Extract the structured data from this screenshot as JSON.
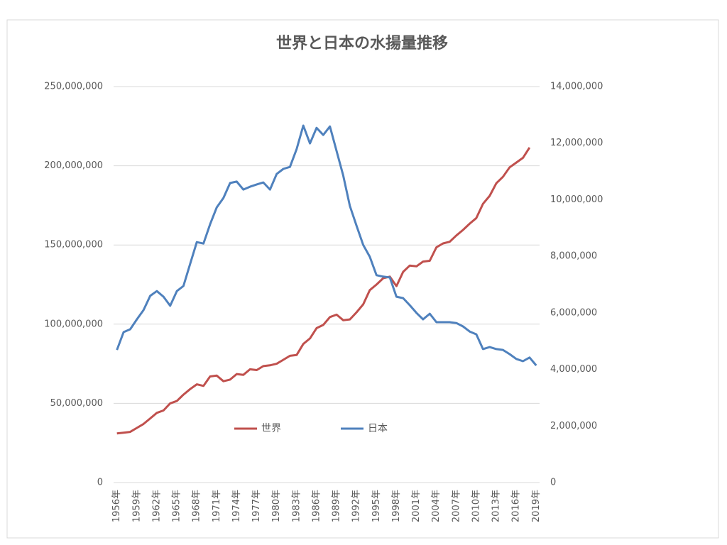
{
  "chart_data": {
    "type": "line",
    "title": "世界と日本の水揚量推移",
    "categories": [
      "1956年",
      null,
      null,
      "1959年",
      null,
      null,
      "1962年",
      null,
      null,
      "1965年",
      null,
      null,
      "1968年",
      null,
      null,
      "1971年",
      null,
      null,
      "1974年",
      null,
      null,
      "1977年",
      null,
      null,
      "1980年",
      null,
      null,
      "1983年",
      null,
      null,
      "1986年",
      null,
      null,
      "1989年",
      null,
      null,
      "1992年",
      null,
      null,
      "1995年",
      null,
      null,
      "1998年",
      null,
      null,
      "2001年",
      null,
      null,
      "2004年",
      null,
      null,
      "2007年",
      null,
      null,
      "2010年",
      null,
      null,
      "2013年",
      null,
      null,
      "2016年",
      null,
      null,
      "2019年"
    ],
    "series": [
      {
        "name": "世界",
        "color": "#c0504d",
        "axis": "y",
        "values": [
          31000000,
          31500000,
          32000000,
          34500000,
          37000000,
          40500000,
          44000000,
          45500000,
          50000000,
          51500000,
          55500000,
          59000000,
          62000000,
          61000000,
          67000000,
          67500000,
          64000000,
          65000000,
          68500000,
          68000000,
          71500000,
          71000000,
          73500000,
          74000000,
          75000000,
          77500000,
          80000000,
          80500000,
          87500000,
          91000000,
          97500000,
          99500000,
          104500000,
          106000000,
          102500000,
          103000000,
          107500000,
          112500000,
          121500000,
          125000000,
          129000000,
          130000000,
          124000000,
          133000000,
          137000000,
          136500000,
          139500000,
          140000000,
          148500000,
          151000000,
          152000000,
          156000000,
          159500000,
          163500000,
          167000000,
          176000000,
          181000000,
          189000000,
          193000000,
          199000000,
          202000000,
          205000000,
          211500000,
          null
        ]
      },
      {
        "name": "日本",
        "color": "#4f81bd",
        "axis": "y2",
        "values": [
          4690000,
          5320000,
          5420000,
          5770000,
          6100000,
          6600000,
          6770000,
          6570000,
          6250000,
          6770000,
          6950000,
          7730000,
          8500000,
          8450000,
          9130000,
          9730000,
          10060000,
          10590000,
          10640000,
          10360000,
          10460000,
          10540000,
          10610000,
          10360000,
          10910000,
          11090000,
          11160000,
          11790000,
          12620000,
          11990000,
          12540000,
          12290000,
          12590000,
          11720000,
          10860000,
          9780000,
          9080000,
          8400000,
          7980000,
          7330000,
          7280000,
          7250000,
          6570000,
          6520000,
          6270000,
          6000000,
          5770000,
          5970000,
          5670000,
          5670000,
          5670000,
          5640000,
          5520000,
          5340000,
          5240000,
          4720000,
          4790000,
          4720000,
          4690000,
          4540000,
          4370000,
          4290000,
          4420000,
          4140000
        ]
      }
    ],
    "ylim": [
      0,
      250000000
    ],
    "yticks": [
      0,
      {
        "value": 50000000,
        "label": "50,000,000"
      },
      {
        "value": 100000000,
        "label": "100,000,000"
      },
      {
        "value": 150000000,
        "label": "150,000,000"
      },
      {
        "value": 200000000,
        "label": "200,000,000"
      },
      {
        "value": 250000000,
        "label": "250,000,000"
      }
    ],
    "y2lim": [
      0,
      14000000
    ],
    "y2ticks": [
      0,
      {
        "value": 2000000,
        "label": "2,000,000"
      },
      {
        "value": 4000000,
        "label": "4,000,000"
      },
      {
        "value": 6000000,
        "label": "6,000,000"
      },
      {
        "value": 8000000,
        "label": "8,000,000"
      },
      {
        "value": 10000000,
        "label": "10,000,000"
      },
      {
        "value": 12000000,
        "label": "12,000,000"
      },
      {
        "value": 14000000,
        "label": "14,000,000"
      }
    ],
    "grid": true,
    "legend": "lower center"
  }
}
